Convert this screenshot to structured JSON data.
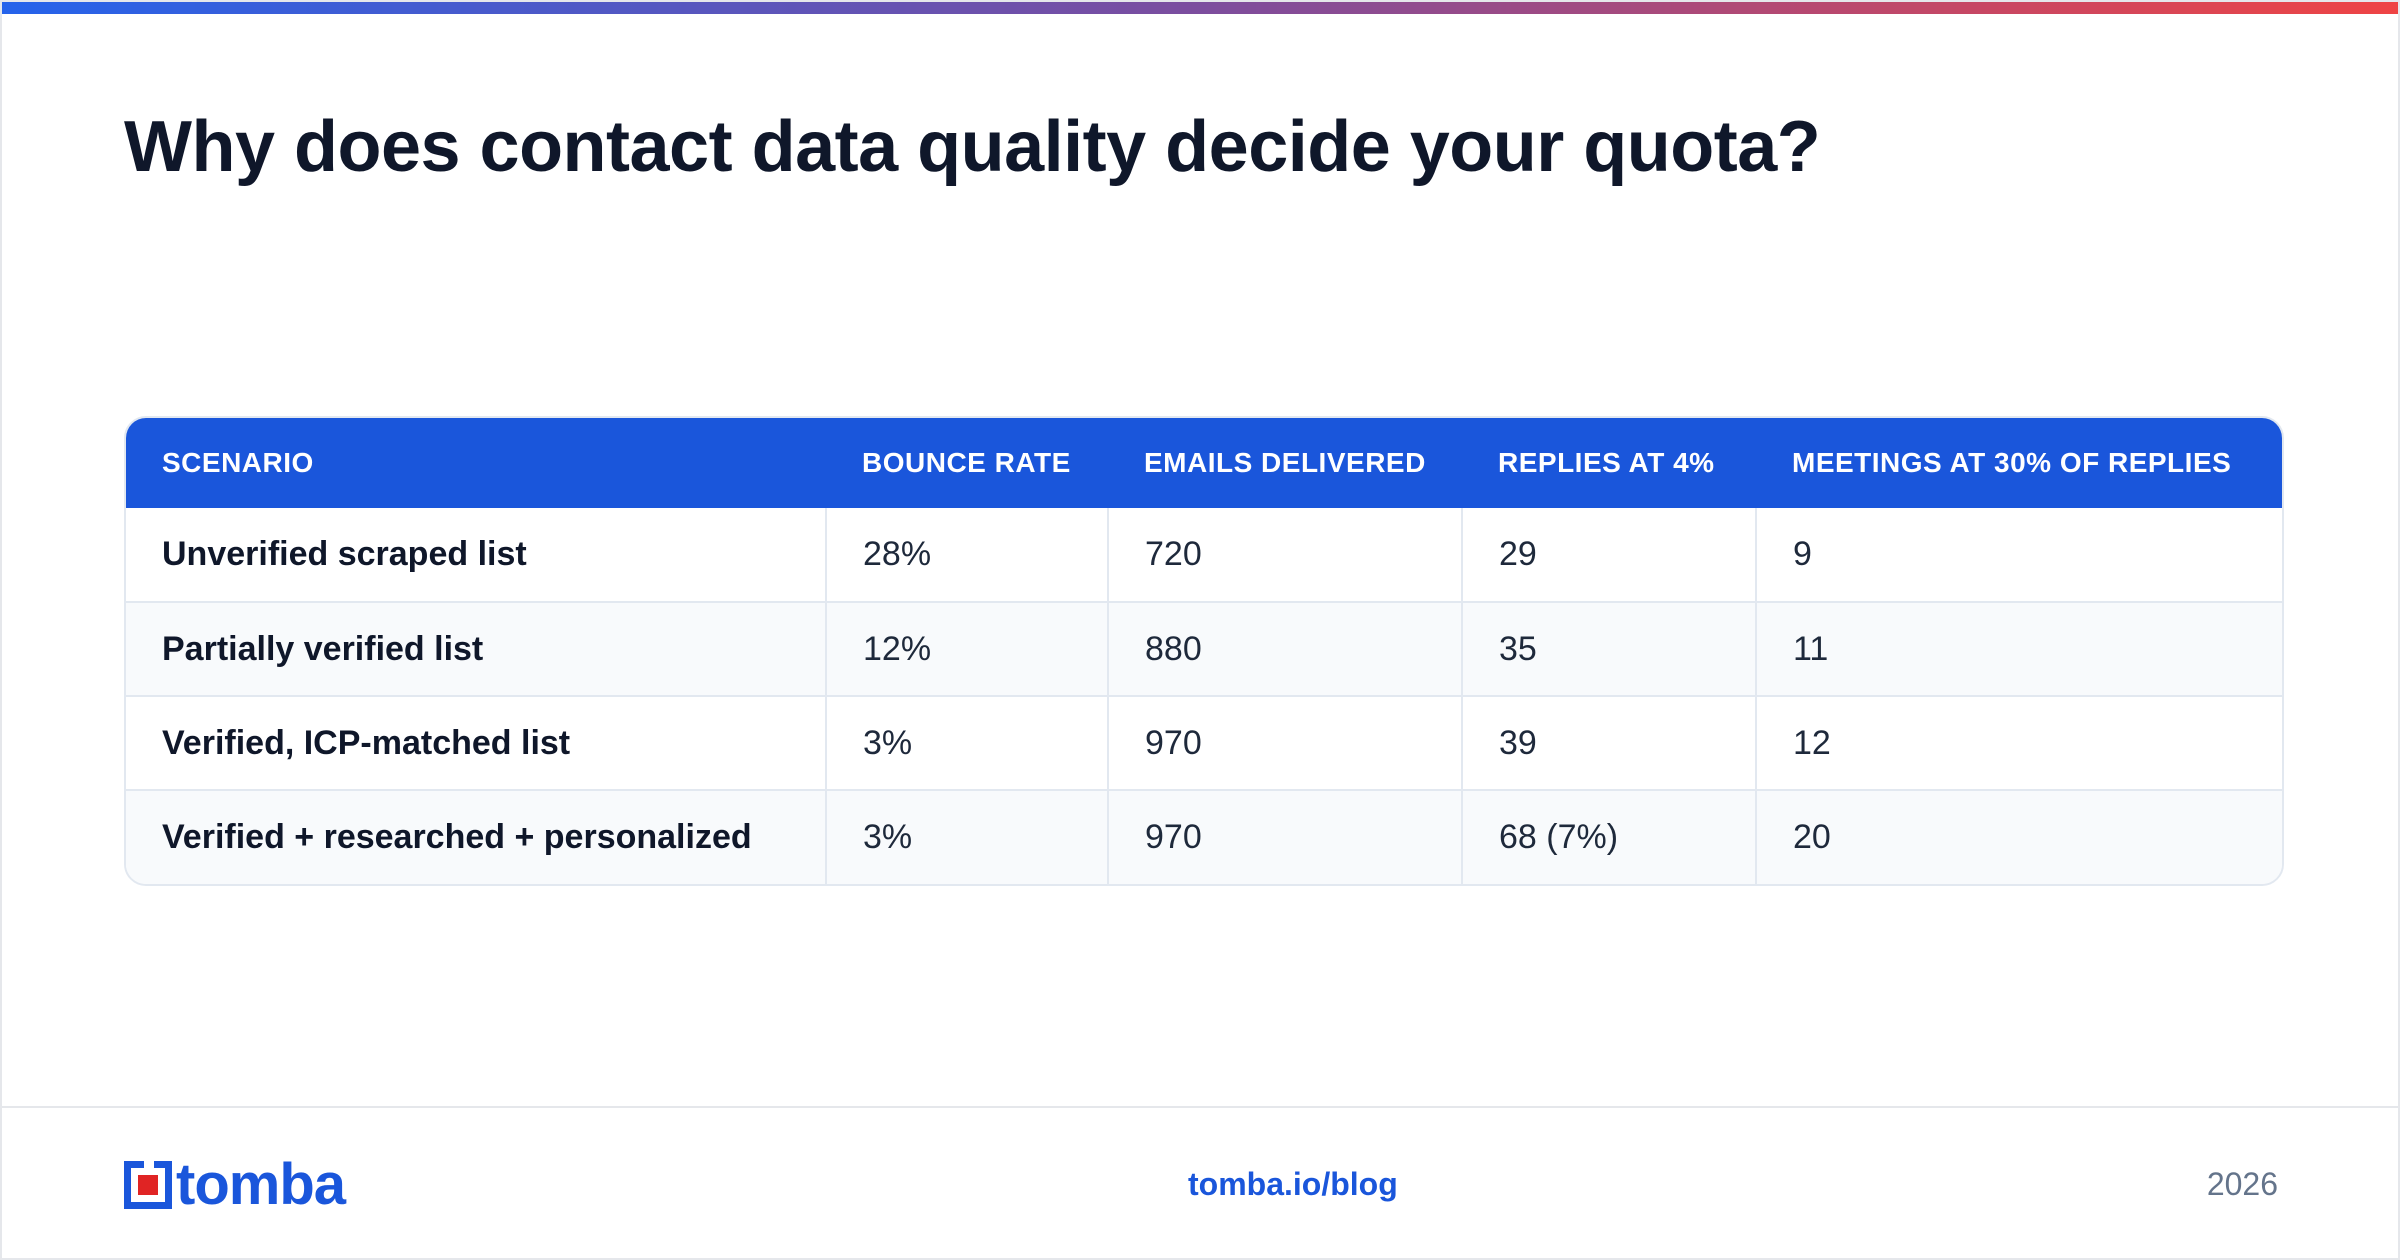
{
  "title": "Why does contact data quality decide your quota?",
  "table": {
    "headers": [
      "SCENARIO",
      "BOUNCE RATE",
      "EMAILS DELIVERED",
      "REPLIES AT 4%",
      "MEETINGS AT 30% OF REPLIES"
    ],
    "rows": [
      [
        "Unverified scraped list",
        "28%",
        "720",
        "29",
        "9"
      ],
      [
        "Partially verified list",
        "12%",
        "880",
        "35",
        "11"
      ],
      [
        "Verified, ICP-matched list",
        "3%",
        "970",
        "39",
        "12"
      ],
      [
        "Verified + researched + personalized",
        "3%",
        "970",
        "68 (7%)",
        "20"
      ]
    ]
  },
  "footer": {
    "logo_text": "tomba",
    "site": "tomba.io/blog",
    "year": "2026"
  },
  "colors": {
    "brand_blue": "#1a56db",
    "logo_red": "#e02424",
    "title": "#0f172a"
  }
}
